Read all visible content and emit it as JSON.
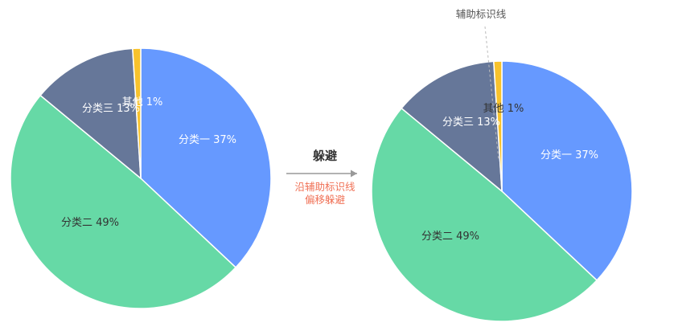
{
  "colors": {
    "slice_1": "#6699FF",
    "slice_2": "#66D9A6",
    "slice_3": "#667799",
    "slice_4": "#F8C22C",
    "label_light": "#FFFFFF",
    "label_dark": "#333333",
    "arrow_sub": "#F07055",
    "arrow_line": "#999999",
    "guide_line": "#BBBBBB"
  },
  "annotations": {
    "arrow_title": "躲避",
    "arrow_sub_line1": "沿辅助标识线",
    "arrow_sub_line2": "偏移躲避",
    "guide_line_title": "辅助标识线"
  },
  "chart_data": [
    {
      "type": "pie",
      "title": "",
      "slices": [
        {
          "label": "分类一 37%",
          "value": 37
        },
        {
          "label": "分类二 49%",
          "value": 49
        },
        {
          "label": "分类三 13%",
          "value": 13
        },
        {
          "label": "其他 1%",
          "value": 1
        }
      ]
    },
    {
      "type": "pie",
      "title": "",
      "slices": [
        {
          "label": "分类一 37%",
          "value": 37
        },
        {
          "label": "分类二 49%",
          "value": 49
        },
        {
          "label": "分类三 13%",
          "value": 13
        },
        {
          "label": "其他 1%",
          "value": 1
        }
      ]
    }
  ]
}
